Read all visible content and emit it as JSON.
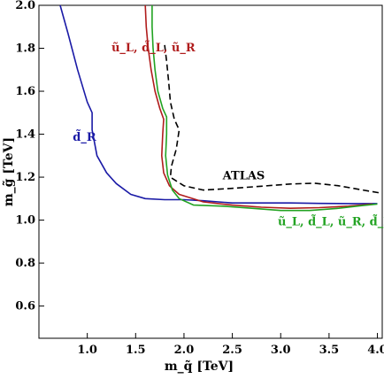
{
  "chart_data": {
    "type": "line",
    "title": "",
    "xlabel": "m_q̃ [TeV]",
    "ylabel": "m_g̃ [TeV]",
    "xlim": [
      0.5,
      4.05
    ],
    "ylim": [
      0.45,
      2.0
    ],
    "xticks": [
      1.0,
      1.5,
      2.0,
      2.5,
      3.0,
      3.5,
      4.0
    ],
    "xtick_labels": [
      "1.0",
      "1.5",
      "2.0",
      "2.5",
      "3.0",
      "3.5",
      "4.0"
    ],
    "yticks": [
      0.6,
      0.8,
      1.0,
      1.2,
      1.4,
      1.6,
      1.8,
      2.0
    ],
    "ytick_labels": [
      "0.6",
      "0.8",
      "1.0",
      "1.2",
      "1.4",
      "1.6",
      "1.8",
      "2.0"
    ],
    "grid": false,
    "series": [
      {
        "name": "d̃_R",
        "color": "#1a1aa6",
        "dash": "solid",
        "points": [
          [
            0.72,
            2.0
          ],
          [
            0.8,
            1.87
          ],
          [
            0.9,
            1.7
          ],
          [
            1.0,
            1.55
          ],
          [
            1.05,
            1.5
          ],
          [
            1.05,
            1.42
          ],
          [
            1.1,
            1.3
          ],
          [
            1.2,
            1.22
          ],
          [
            1.3,
            1.17
          ],
          [
            1.45,
            1.12
          ],
          [
            1.6,
            1.1
          ],
          [
            1.8,
            1.095
          ],
          [
            2.0,
            1.095
          ],
          [
            2.2,
            1.09
          ],
          [
            2.5,
            1.08
          ],
          [
            2.8,
            1.08
          ],
          [
            3.1,
            1.08
          ],
          [
            3.4,
            1.078
          ],
          [
            3.7,
            1.077
          ],
          [
            4.0,
            1.077
          ]
        ]
      },
      {
        "name": "ũ_L, d̃_L, ũ_R",
        "color": "#b01c1c",
        "dash": "solid",
        "points": [
          [
            1.6,
            2.0
          ],
          [
            1.61,
            1.9
          ],
          [
            1.63,
            1.8
          ],
          [
            1.66,
            1.7
          ],
          [
            1.7,
            1.6
          ],
          [
            1.75,
            1.52
          ],
          [
            1.79,
            1.47
          ],
          [
            1.78,
            1.4
          ],
          [
            1.77,
            1.3
          ],
          [
            1.79,
            1.22
          ],
          [
            1.85,
            1.16
          ],
          [
            1.95,
            1.12
          ],
          [
            2.2,
            1.085
          ],
          [
            2.5,
            1.07
          ],
          [
            2.8,
            1.06
          ],
          [
            3.1,
            1.055
          ],
          [
            3.4,
            1.058
          ],
          [
            3.7,
            1.065
          ],
          [
            3.95,
            1.075
          ]
        ]
      },
      {
        "name": "ũ_L, d̃_L, ũ_R, d̃_R",
        "color": "#22a322",
        "dash": "solid",
        "points": [
          [
            1.67,
            2.0
          ],
          [
            1.67,
            1.9
          ],
          [
            1.68,
            1.8
          ],
          [
            1.7,
            1.7
          ],
          [
            1.73,
            1.6
          ],
          [
            1.78,
            1.52
          ],
          [
            1.82,
            1.48
          ],
          [
            1.82,
            1.4
          ],
          [
            1.81,
            1.3
          ],
          [
            1.83,
            1.21
          ],
          [
            1.88,
            1.14
          ],
          [
            1.95,
            1.1
          ],
          [
            2.1,
            1.07
          ],
          [
            2.4,
            1.065
          ],
          [
            2.7,
            1.055
          ],
          [
            3.0,
            1.045
          ],
          [
            3.3,
            1.045
          ],
          [
            3.6,
            1.055
          ],
          [
            3.85,
            1.068
          ],
          [
            4.0,
            1.075
          ]
        ]
      },
      {
        "name": "ATLAS",
        "color": "#000000",
        "dash": "dashed",
        "points": [
          [
            1.8,
            1.815
          ],
          [
            1.82,
            1.74
          ],
          [
            1.84,
            1.65
          ],
          [
            1.86,
            1.55
          ],
          [
            1.9,
            1.47
          ],
          [
            1.95,
            1.42
          ],
          [
            1.92,
            1.33
          ],
          [
            1.87,
            1.25
          ],
          [
            1.86,
            1.2
          ],
          [
            2.0,
            1.16
          ],
          [
            2.2,
            1.14
          ],
          [
            2.5,
            1.148
          ],
          [
            2.8,
            1.158
          ],
          [
            3.1,
            1.168
          ],
          [
            3.35,
            1.172
          ],
          [
            3.6,
            1.16
          ],
          [
            3.85,
            1.14
          ],
          [
            4.05,
            1.125
          ]
        ]
      }
    ],
    "annotations": [
      {
        "text": "ũ_L, d̃_L, ũ_R",
        "color": "#b01c1c",
        "x": 1.25,
        "y": 1.785
      },
      {
        "text": "d̃_R",
        "color": "#1a1aa6",
        "x": 0.85,
        "y": 1.37
      },
      {
        "text": "ATLAS",
        "color": "#000000",
        "x": 2.4,
        "y": 1.19
      },
      {
        "text": "ũ_L, d̃_L, ũ_R, d̃_R",
        "color": "#22a322",
        "x": 2.97,
        "y": 0.975
      }
    ]
  }
}
